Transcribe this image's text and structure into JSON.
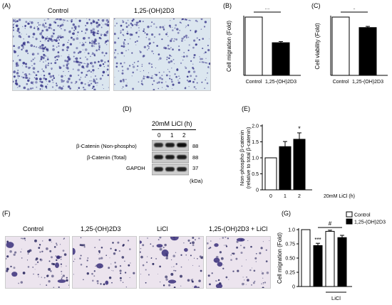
{
  "panels": {
    "A": "(A)",
    "B": "(B)",
    "C": "(C)",
    "D": "(D)",
    "E": "(E)",
    "F": "(F)",
    "G": "(G)"
  },
  "panel_a": {
    "labels": [
      "Control",
      "1,25-(OH)2D3"
    ]
  },
  "panel_d": {
    "title": "20mM LiCl (h)",
    "timepoints": [
      "0",
      "1",
      "2"
    ],
    "rows": [
      {
        "label": "β-Catenin (Non-phospho)",
        "kda": "88"
      },
      {
        "label": "β-Catenin (Total)",
        "kda": "88"
      },
      {
        "label": "GAPDH",
        "kda": "37"
      }
    ],
    "kda_unit": "(kDa)"
  },
  "panel_f": {
    "labels": [
      "Control",
      "1,25-(OH)2D3",
      "LiCl",
      "1,25-(OH)2D3 + LiCl"
    ]
  },
  "colors": {
    "stain": "#3c3a8c",
    "bg_a": "#dbe6ef",
    "bg_f": "#ece4ee"
  },
  "chart_data": [
    {
      "id": "B",
      "type": "bar",
      "categories": [
        "Control",
        "1,25-(OH)2D3"
      ],
      "values": [
        1.0,
        0.56
      ],
      "errors": [
        0,
        0.02
      ],
      "fills": [
        "#ffffff",
        "#000000"
      ],
      "ylabel": "Cell migration (Fold)",
      "ylim": [
        0,
        1.0
      ],
      "significance": "**"
    },
    {
      "id": "C",
      "type": "bar",
      "categories": [
        "Control",
        "1,25-(OH)2D3"
      ],
      "values": [
        1.0,
        0.82
      ],
      "errors": [
        0,
        0.02
      ],
      "fills": [
        "#ffffff",
        "#000000"
      ],
      "ylabel": "Cell viability (Fold)",
      "ylim": [
        0,
        1.0
      ],
      "significance": "*"
    },
    {
      "id": "E",
      "type": "bar",
      "categories": [
        "0",
        "1",
        "2"
      ],
      "values": [
        1.0,
        1.35,
        1.58
      ],
      "errors": [
        0,
        0.16,
        0.2
      ],
      "fills": [
        "#ffffff",
        "#000000",
        "#000000"
      ],
      "ylabel": "Non-phospho β-catenin",
      "ylabel2": "(relative to total β-catenin)",
      "xlabel": "20mM LiCl (h)",
      "yticks": [
        "0",
        "0.5",
        "1.0",
        "1.5",
        "2.0"
      ],
      "ylim": [
        0,
        2.0
      ],
      "significance": [
        "",
        "",
        "*"
      ]
    },
    {
      "id": "G",
      "type": "bar",
      "categories": [
        "Control",
        "1,25-(OH)2D3",
        "Control",
        "1,25-(OH)2D3"
      ],
      "values": [
        1.0,
        0.72,
        0.97,
        0.86
      ],
      "errors": [
        0,
        0.04,
        0.02,
        0.04
      ],
      "fills": [
        "#ffffff",
        "#000000",
        "#ffffff",
        "#000000"
      ],
      "ylabel": "Cell migration (Fold)",
      "yticks": [
        "0",
        "0.25",
        "0.50",
        "0.75",
        "1.0"
      ],
      "ylim": [
        0,
        1.0
      ],
      "legend": [
        "Control",
        "1,25-(OH)2D3"
      ],
      "group_label": "LiCl",
      "annotations": [
        "***",
        "#"
      ]
    }
  ]
}
